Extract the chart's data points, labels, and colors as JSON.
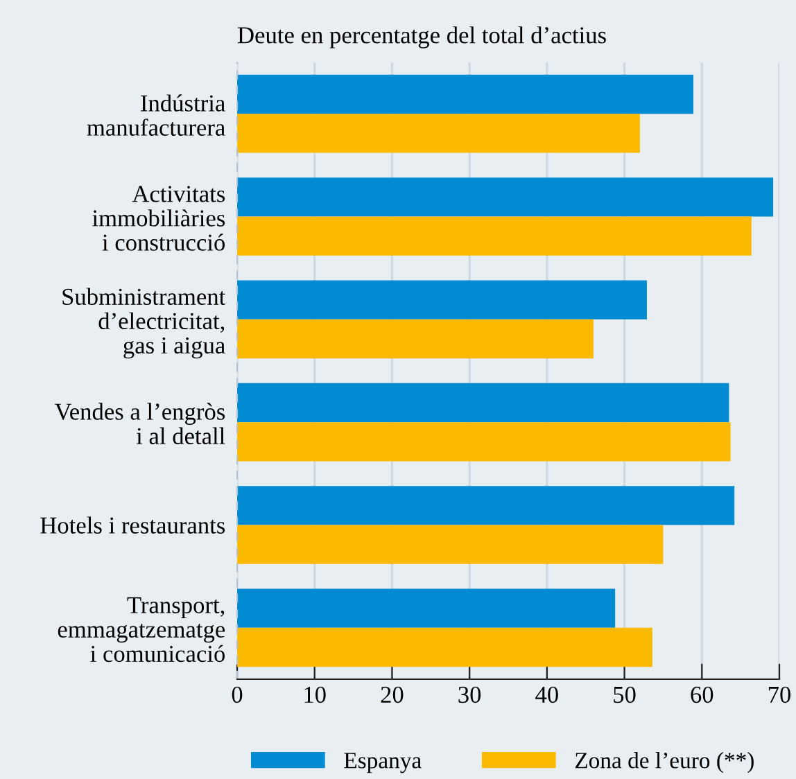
{
  "chart_data": {
    "type": "bar",
    "orientation": "horizontal",
    "title": "Deute en percentatge del total d’actius",
    "categories": [
      "Indústria\nmanufacturera",
      "Activitats\nimmobiliàries\ni construcció",
      "Subministrament\nd’electricitat,\ngas i aigua",
      "Vendes a l’engròs\ni al detall",
      "Hotels i restaurants",
      "Transport,\nemmagatzematge\ni comunicació"
    ],
    "series": [
      {
        "name": "Espanya",
        "color": "#008bd2",
        "values": [
          58.9,
          69.2,
          52.9,
          63.5,
          64.2,
          48.8
        ]
      },
      {
        "name": "Zona de l’euro (**)",
        "color": "#fbb900",
        "values": [
          52.0,
          66.4,
          46.0,
          63.7,
          55.0,
          53.6
        ]
      }
    ],
    "xlim": [
      0,
      70
    ],
    "xticks": [
      0,
      10,
      20,
      30,
      40,
      50,
      60,
      70
    ],
    "grid": "x",
    "legend": "bottom"
  }
}
